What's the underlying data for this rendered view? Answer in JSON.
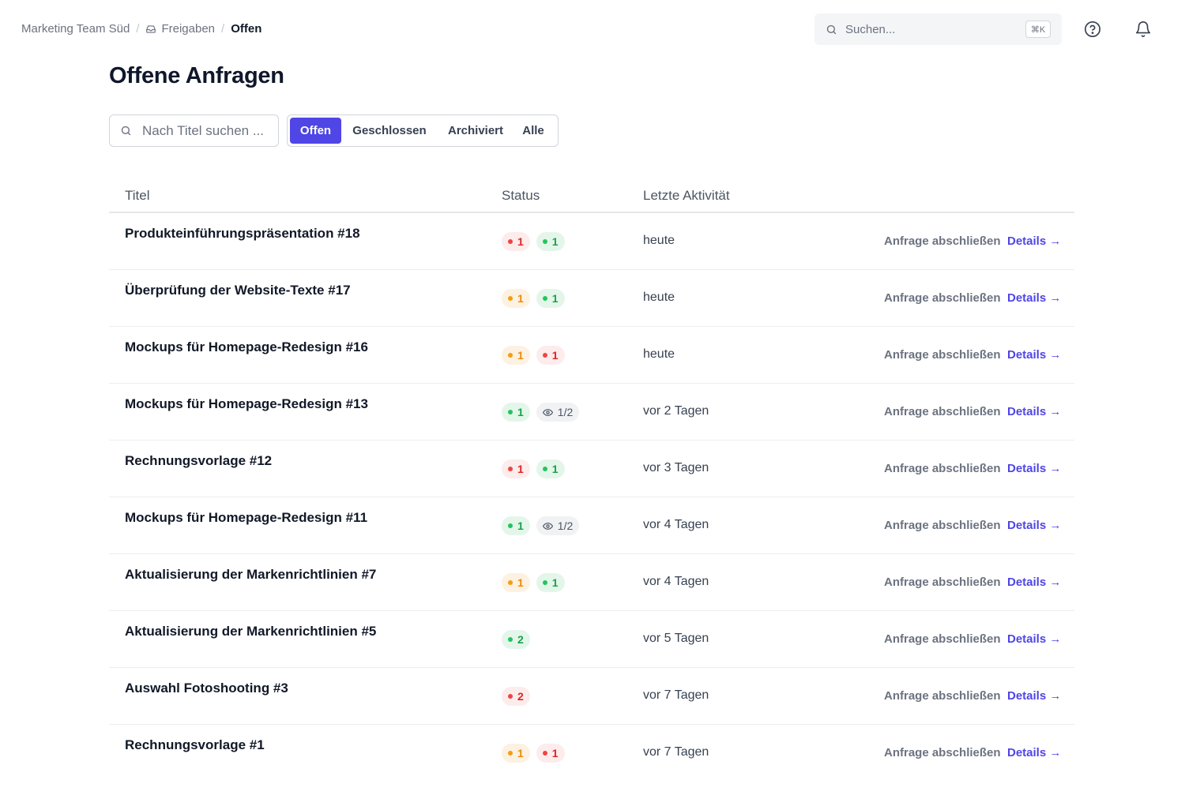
{
  "breadcrumb": {
    "team": "Marketing Team Süd",
    "section": "Freigaben",
    "current": "Offen",
    "separator": "/"
  },
  "global_search": {
    "placeholder": "Suchen...",
    "shortcut": "⌘K"
  },
  "page": {
    "title": "Offene Anfragen"
  },
  "filter": {
    "search_placeholder": "Nach Titel suchen ...",
    "tabs": [
      {
        "label": "Offen",
        "active": true
      },
      {
        "label": "Geschlossen",
        "active": false
      },
      {
        "label": "Archiviert",
        "active": false
      },
      {
        "label": "Alle",
        "active": false
      }
    ]
  },
  "table": {
    "columns": {
      "title": "Titel",
      "status": "Status",
      "activity": "Letzte Aktivität"
    },
    "close_label": "Anfrage abschließen",
    "details_label": "Details →",
    "status_colors": {
      "red": "#ef4444",
      "orange": "#f59e0b",
      "green": "#22c55e"
    },
    "rows": [
      {
        "title": "Produkteinführungspräsentation #18",
        "activity": "heute",
        "badges": [
          {
            "color": "red",
            "value": "1"
          },
          {
            "color": "green",
            "value": "1"
          }
        ]
      },
      {
        "title": "Überprüfung der Website-Texte #17",
        "activity": "heute",
        "badges": [
          {
            "color": "orange",
            "value": "1"
          },
          {
            "color": "green",
            "value": "1"
          }
        ]
      },
      {
        "title": "Mockups für Homepage-Redesign #16",
        "activity": "heute",
        "badges": [
          {
            "color": "orange",
            "value": "1"
          },
          {
            "color": "red",
            "value": "1"
          }
        ]
      },
      {
        "title": "Mockups für Homepage-Redesign #13",
        "activity": "vor 2 Tagen",
        "badges": [
          {
            "color": "green",
            "value": "1"
          },
          {
            "color": "gray",
            "icon": "eye-icon",
            "value": "1/2"
          }
        ]
      },
      {
        "title": "Rechnungsvorlage #12",
        "activity": "vor 3 Tagen",
        "badges": [
          {
            "color": "red",
            "value": "1"
          },
          {
            "color": "green",
            "value": "1"
          }
        ]
      },
      {
        "title": "Mockups für Homepage-Redesign #11",
        "activity": "vor 4 Tagen",
        "badges": [
          {
            "color": "green",
            "value": "1"
          },
          {
            "color": "gray",
            "icon": "eye-icon",
            "value": "1/2"
          }
        ]
      },
      {
        "title": "Aktualisierung der Markenrichtlinien #7",
        "activity": "vor 4 Tagen",
        "badges": [
          {
            "color": "orange",
            "value": "1"
          },
          {
            "color": "green",
            "value": "1"
          }
        ]
      },
      {
        "title": "Aktualisierung der Markenrichtlinien #5",
        "activity": "vor 5 Tagen",
        "badges": [
          {
            "color": "green",
            "value": "2"
          }
        ]
      },
      {
        "title": "Auswahl Fotoshooting #3",
        "activity": "vor 7 Tagen",
        "badges": [
          {
            "color": "red",
            "value": "2"
          }
        ]
      },
      {
        "title": "Rechnungsvorlage #1",
        "activity": "vor 7 Tagen",
        "badges": [
          {
            "color": "orange",
            "value": "1"
          },
          {
            "color": "red",
            "value": "1"
          }
        ]
      }
    ]
  }
}
